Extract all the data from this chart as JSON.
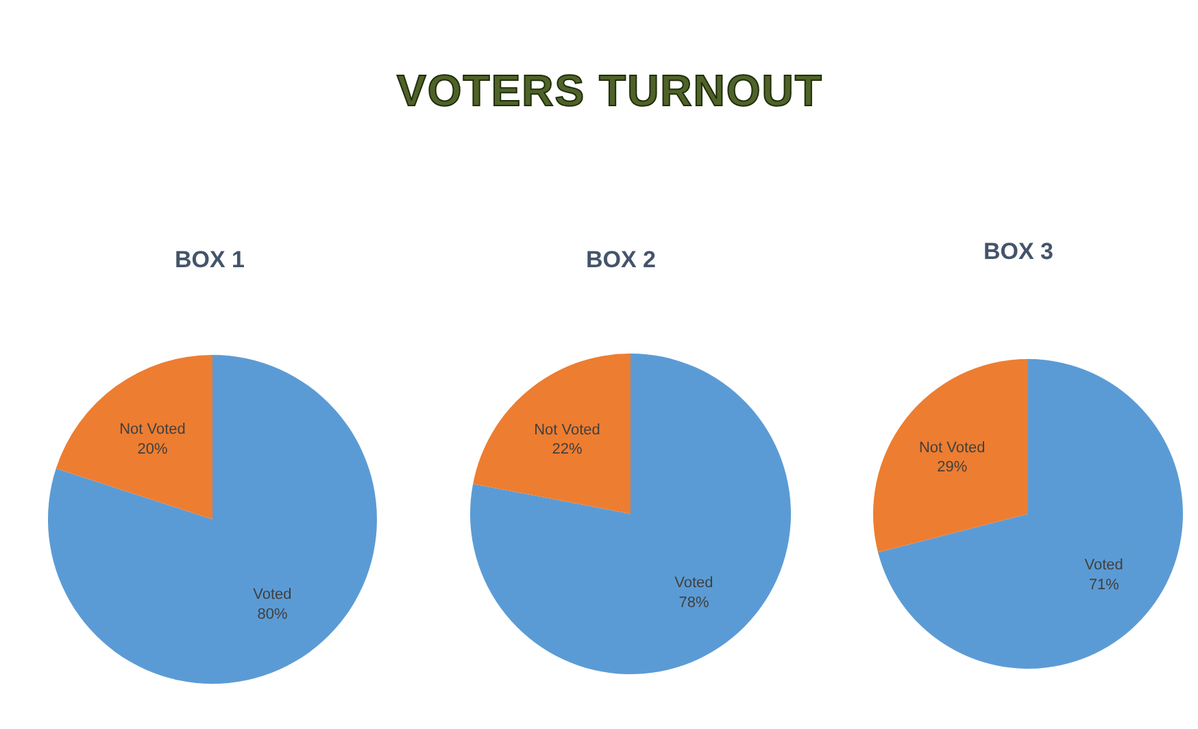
{
  "chart_data": [
    {
      "type": "other",
      "title": "VOTERS TURNOUT"
    },
    {
      "type": "pie",
      "title": "BOX 1",
      "categories": [
        "Voted",
        "Not Voted"
      ],
      "values": [
        80,
        20
      ],
      "colors": [
        "#5b9bd5",
        "#ed7d31"
      ],
      "value_labels": [
        "80%",
        "20%"
      ]
    },
    {
      "type": "pie",
      "title": "BOX 2",
      "categories": [
        "Voted",
        "Not Voted"
      ],
      "values": [
        78,
        22
      ],
      "colors": [
        "#5b9bd5",
        "#ed7d31"
      ],
      "value_labels": [
        "78%",
        "22%"
      ]
    },
    {
      "type": "pie",
      "title": "BOX 3",
      "categories": [
        "Voted",
        "Not Voted"
      ],
      "values": [
        71,
        29
      ],
      "colors": [
        "#5b9bd5",
        "#ed7d31"
      ],
      "value_labels": [
        "71%",
        "29%"
      ]
    }
  ]
}
